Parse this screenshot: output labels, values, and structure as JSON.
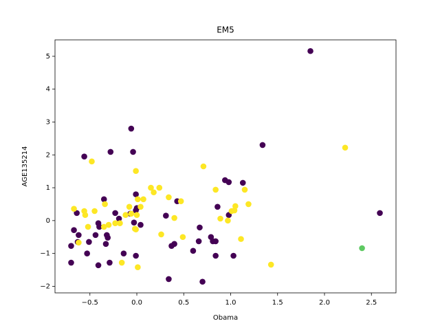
{
  "chart_data": {
    "type": "scatter",
    "title": "EM5",
    "xlabel": "Obama",
    "ylabel": "AGE135214",
    "x": [
      1.85,
      -0.06,
      1.34,
      -0.28,
      -0.04,
      -0.56,
      0.94,
      0.98,
      1.13,
      -0.35,
      0.43,
      -0.01,
      0.0,
      -0.01,
      0.86,
      2.59,
      -0.64,
      -0.23,
      -0.07,
      0.31,
      0.98,
      -0.19,
      -0.41,
      -0.03,
      0.04,
      -0.4,
      0.67,
      -0.67,
      -0.62,
      -0.44,
      -0.32,
      -0.31,
      -0.63,
      -0.51,
      0.79,
      0.81,
      0.66,
      0.84,
      -0.33,
      0.4,
      0.37,
      -0.7,
      0.6,
      -0.14,
      -0.53,
      -0.01,
      0.84,
      1.03,
      -0.7,
      -0.29,
      -0.41,
      0.34,
      0.7,
      2.22,
      -0.48,
      0.71,
      -0.01,
      0.15,
      0.24,
      0.18,
      1.15,
      0.84,
      0.34,
      0.01,
      0.07,
      0.47,
      -0.34,
      1.19,
      -0.08,
      0.04,
      1.05,
      -0.67,
      -0.56,
      -0.45,
      1.01,
      1.04,
      -0.55,
      -0.12,
      -0.06,
      0.0,
      0.4,
      0.89,
      0.97,
      -0.23,
      -0.18,
      -0.3,
      -0.35,
      -0.52,
      -0.02,
      -0.01,
      0.26,
      0.49,
      1.11,
      -0.62,
      -0.16,
      1.43,
      0.01,
      2.4
    ],
    "values": [
      5.16,
      2.8,
      2.3,
      2.09,
      2.09,
      1.95,
      1.23,
      1.17,
      1.15,
      0.65,
      0.59,
      0.8,
      0.38,
      0.31,
      0.42,
      0.23,
      0.23,
      0.23,
      0.21,
      0.15,
      0.17,
      0.06,
      -0.08,
      -0.06,
      -0.13,
      -0.19,
      -0.21,
      -0.29,
      -0.44,
      -0.44,
      -0.44,
      -0.52,
      -0.65,
      -0.65,
      -0.5,
      -0.63,
      -0.63,
      -0.63,
      -0.71,
      -0.71,
      -0.77,
      -0.77,
      -0.92,
      -1.0,
      -1.0,
      -1.07,
      -1.07,
      -1.07,
      -1.28,
      -1.28,
      -1.36,
      -1.78,
      -1.86,
      2.22,
      1.8,
      1.65,
      1.51,
      1.0,
      1.0,
      0.86,
      0.94,
      0.94,
      0.71,
      0.65,
      0.65,
      0.59,
      0.5,
      0.5,
      0.42,
      0.42,
      0.44,
      0.36,
      0.29,
      0.29,
      0.29,
      0.31,
      0.17,
      0.17,
      0.21,
      0.17,
      0.08,
      0.06,
      0.0,
      -0.08,
      -0.08,
      -0.13,
      -0.19,
      -0.19,
      -0.25,
      -0.27,
      -0.42,
      -0.5,
      -0.56,
      -0.67,
      -1.28,
      -1.34,
      -1.42,
      -0.84
    ],
    "colors": [
      "#440154",
      "#440154",
      "#440154",
      "#440154",
      "#440154",
      "#440154",
      "#440154",
      "#440154",
      "#440154",
      "#440154",
      "#440154",
      "#440154",
      "#440154",
      "#440154",
      "#440154",
      "#440154",
      "#440154",
      "#440154",
      "#440154",
      "#440154",
      "#440154",
      "#440154",
      "#440154",
      "#440154",
      "#440154",
      "#440154",
      "#440154",
      "#440154",
      "#440154",
      "#440154",
      "#440154",
      "#440154",
      "#440154",
      "#440154",
      "#440154",
      "#440154",
      "#440154",
      "#440154",
      "#440154",
      "#440154",
      "#440154",
      "#440154",
      "#440154",
      "#440154",
      "#440154",
      "#440154",
      "#440154",
      "#440154",
      "#440154",
      "#440154",
      "#440154",
      "#440154",
      "#440154",
      "#fde725",
      "#fde725",
      "#fde725",
      "#fde725",
      "#fde725",
      "#fde725",
      "#fde725",
      "#fde725",
      "#fde725",
      "#fde725",
      "#fde725",
      "#fde725",
      "#fde725",
      "#fde725",
      "#fde725",
      "#fde725",
      "#fde725",
      "#fde725",
      "#fde725",
      "#fde725",
      "#fde725",
      "#fde725",
      "#fde725",
      "#fde725",
      "#fde725",
      "#fde725",
      "#fde725",
      "#fde725",
      "#fde725",
      "#fde725",
      "#fde725",
      "#fde725",
      "#fde725",
      "#fde725",
      "#fde725",
      "#fde725",
      "#fde725",
      "#fde725",
      "#fde725",
      "#fde725",
      "#fde725",
      "#fde725",
      "#fde725",
      "#fde725",
      "#5ec962"
    ],
    "xlim": [
      -0.872,
      2.762
    ],
    "ylim": [
      -2.2,
      5.5
    ],
    "xticks": [
      {
        "value": -0.5,
        "label": "−0.5"
      },
      {
        "value": 0.0,
        "label": "0.0"
      },
      {
        "value": 0.5,
        "label": "0.5"
      },
      {
        "value": 1.0,
        "label": "1.0"
      },
      {
        "value": 1.5,
        "label": "1.5"
      },
      {
        "value": 2.0,
        "label": "2.0"
      },
      {
        "value": 2.5,
        "label": "2.5"
      }
    ],
    "yticks": [
      {
        "value": -2,
        "label": "−2"
      },
      {
        "value": -1,
        "label": "−1"
      },
      0,
      1,
      2,
      3,
      4,
      5
    ],
    "grid": false
  }
}
